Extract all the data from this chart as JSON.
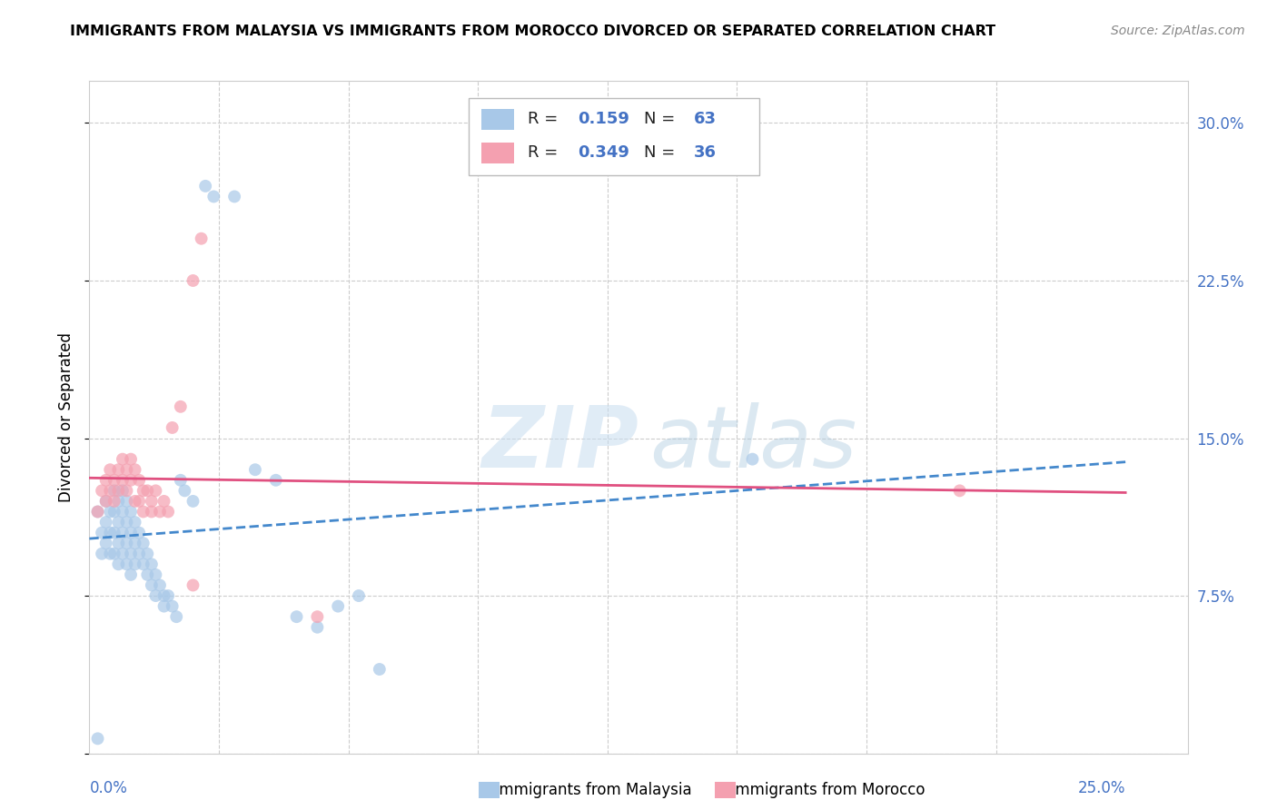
{
  "title": "IMMIGRANTS FROM MALAYSIA VS IMMIGRANTS FROM MOROCCO DIVORCED OR SEPARATED CORRELATION CHART",
  "source": "Source: ZipAtlas.com",
  "ylabel": "Divorced or Separated",
  "color_malaysia": "#a8c8e8",
  "color_morocco": "#f4a0b0",
  "color_malaysia_line": "#4488cc",
  "color_morocco_line": "#e05080",
  "ylim": [
    0.0,
    0.32
  ],
  "xlim": [
    0.0,
    0.265
  ],
  "yticks": [
    0.0,
    0.075,
    0.15,
    0.225,
    0.3
  ],
  "ytick_labels": [
    "",
    "7.5%",
    "15.0%",
    "22.5%",
    "30.0%"
  ],
  "xtick_left": "0.0%",
  "xtick_right": "25.0%",
  "legend_val1": "0.159",
  "legend_n1": "63",
  "legend_val2": "0.349",
  "legend_n2": "36",
  "malaysia_x": [
    0.002,
    0.003,
    0.003,
    0.004,
    0.004,
    0.004,
    0.005,
    0.005,
    0.005,
    0.006,
    0.006,
    0.006,
    0.006,
    0.007,
    0.007,
    0.007,
    0.007,
    0.008,
    0.008,
    0.008,
    0.008,
    0.009,
    0.009,
    0.009,
    0.009,
    0.01,
    0.01,
    0.01,
    0.01,
    0.011,
    0.011,
    0.011,
    0.012,
    0.012,
    0.013,
    0.013,
    0.014,
    0.014,
    0.015,
    0.015,
    0.016,
    0.016,
    0.017,
    0.018,
    0.018,
    0.019,
    0.02,
    0.021,
    0.022,
    0.023,
    0.025,
    0.028,
    0.03,
    0.035,
    0.04,
    0.045,
    0.05,
    0.055,
    0.06,
    0.065,
    0.07,
    0.16,
    0.002
  ],
  "malaysia_y": [
    0.115,
    0.105,
    0.095,
    0.12,
    0.11,
    0.1,
    0.115,
    0.105,
    0.095,
    0.125,
    0.115,
    0.105,
    0.095,
    0.12,
    0.11,
    0.1,
    0.09,
    0.125,
    0.115,
    0.105,
    0.095,
    0.12,
    0.11,
    0.1,
    0.09,
    0.115,
    0.105,
    0.095,
    0.085,
    0.11,
    0.1,
    0.09,
    0.105,
    0.095,
    0.1,
    0.09,
    0.095,
    0.085,
    0.09,
    0.08,
    0.085,
    0.075,
    0.08,
    0.075,
    0.07,
    0.075,
    0.07,
    0.065,
    0.13,
    0.125,
    0.12,
    0.27,
    0.265,
    0.265,
    0.135,
    0.13,
    0.065,
    0.06,
    0.07,
    0.075,
    0.04,
    0.14,
    0.007
  ],
  "morocco_x": [
    0.002,
    0.003,
    0.004,
    0.004,
    0.005,
    0.005,
    0.006,
    0.006,
    0.007,
    0.007,
    0.008,
    0.008,
    0.009,
    0.009,
    0.01,
    0.01,
    0.011,
    0.011,
    0.012,
    0.012,
    0.013,
    0.013,
    0.014,
    0.015,
    0.015,
    0.016,
    0.017,
    0.018,
    0.019,
    0.02,
    0.022,
    0.025,
    0.027,
    0.025,
    0.21,
    0.055
  ],
  "morocco_y": [
    0.115,
    0.125,
    0.13,
    0.12,
    0.135,
    0.125,
    0.13,
    0.12,
    0.135,
    0.125,
    0.14,
    0.13,
    0.135,
    0.125,
    0.14,
    0.13,
    0.135,
    0.12,
    0.13,
    0.12,
    0.125,
    0.115,
    0.125,
    0.12,
    0.115,
    0.125,
    0.115,
    0.12,
    0.115,
    0.155,
    0.165,
    0.225,
    0.245,
    0.08,
    0.125,
    0.065
  ]
}
